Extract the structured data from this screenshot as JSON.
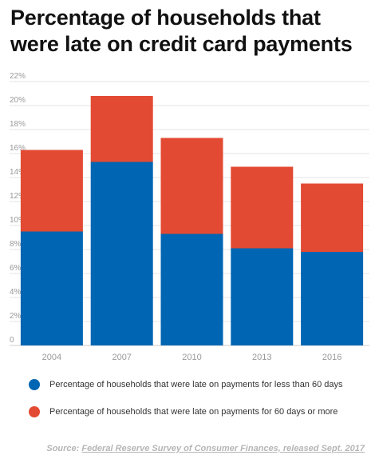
{
  "title": "Percentage of households that were late on credit card payments",
  "colors": {
    "less_than_60": "#0066b3",
    "sixty_or_more": "#e34a33",
    "grid": "#e6e6e6",
    "tick_text": "#999999"
  },
  "chart_data": {
    "type": "bar",
    "stacked": true,
    "categories": [
      "2004",
      "2007",
      "2010",
      "2013",
      "2016"
    ],
    "series": [
      {
        "name": "Percentage of households that were late on payments for less than 60 days",
        "values": [
          9.5,
          15.3,
          9.3,
          8.1,
          7.8
        ]
      },
      {
        "name": "Percentage of households that were late on payments for 60 days or more",
        "values": [
          6.8,
          5.5,
          8.0,
          6.8,
          5.7
        ]
      }
    ],
    "y_ticks": [
      "0",
      "2%",
      "4%",
      "6%",
      "8%",
      "10%",
      "12%",
      "14%",
      "16%",
      "18%",
      "20%",
      "22%"
    ],
    "ylim": [
      0,
      22
    ],
    "grid": true,
    "legend_position": "bottom"
  },
  "source": {
    "prefix": "Source: ",
    "link_text": "Federal Reserve Survey of Consumer Finances, released Sept. 2017"
  }
}
